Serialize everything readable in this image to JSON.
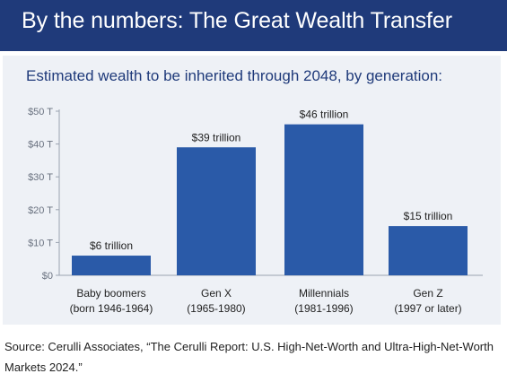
{
  "header": {
    "title": "By the numbers: The Great Wealth Transfer"
  },
  "colors": {
    "banner": "#1f3a7a",
    "bar": "#2a5aa8",
    "panel": "#eef1f6"
  },
  "chart_data": {
    "type": "bar",
    "title": "Estimated wealth to be inherited through 2048, by generation:",
    "xlabel": "",
    "ylabel": "",
    "ylim": [
      0,
      50
    ],
    "yticks": [
      {
        "value": 0,
        "label": "$0"
      },
      {
        "value": 10,
        "label": "$10 T"
      },
      {
        "value": 20,
        "label": "$20 T"
      },
      {
        "value": 30,
        "label": "$30 T"
      },
      {
        "value": 40,
        "label": "$40 T"
      },
      {
        "value": 50,
        "label": "$50 T"
      }
    ],
    "categories": [
      [
        "Baby boomers",
        "(born 1946-1964)"
      ],
      [
        "Gen X",
        "(1965-1980)"
      ],
      [
        "Millennials",
        "(1981-1996)"
      ],
      [
        "Gen Z",
        "(1997 or later)"
      ]
    ],
    "values": [
      6,
      39,
      46,
      15
    ],
    "data_labels": [
      "$6 trillion",
      "$39 trillion",
      "$46 trillion",
      "$15 trillion"
    ],
    "grid": false,
    "legend": "none"
  },
  "source": "Source: Cerulli Associates, “The Cerulli Report: U.S. High-Net-Worth and Ultra-High-Net-Worth Markets 2024.”"
}
